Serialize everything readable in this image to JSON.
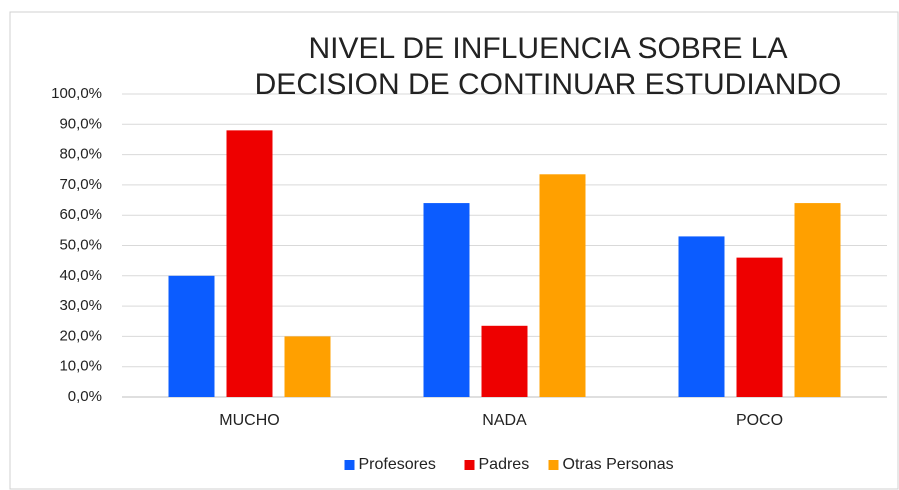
{
  "chart_data": {
    "type": "bar",
    "title": [
      "NIVEL DE INFLUENCIA SOBRE LA",
      "DECISION DE CONTINUAR ESTUDIANDO"
    ],
    "categories": [
      "MUCHO",
      "NADA",
      "POCO"
    ],
    "series": [
      {
        "name": "Profesores",
        "color": "#0b5cff",
        "values": [
          40,
          64,
          53
        ]
      },
      {
        "name": "Padres",
        "color": "#ee0000",
        "values": [
          88,
          23.5,
          46
        ]
      },
      {
        "name": "Otras Personas",
        "color": "#ffa000",
        "values": [
          20,
          73.5,
          64
        ]
      }
    ],
    "ylim": [
      0,
      100
    ],
    "yticks": [
      {
        "value": 0,
        "label": "0,0%"
      },
      {
        "value": 10,
        "label": "10,0%"
      },
      {
        "value": 20,
        "label": "20,0%"
      },
      {
        "value": 30,
        "label": "30,0%"
      },
      {
        "value": 40,
        "label": "40,0%"
      },
      {
        "value": 50,
        "label": "50,0%"
      },
      {
        "value": 60,
        "label": "60,0%"
      },
      {
        "value": 70,
        "label": "70,0%"
      },
      {
        "value": 80,
        "label": "80,0%"
      },
      {
        "value": 90,
        "label": "90,0%"
      },
      {
        "value": 100,
        "label": "100,0%"
      }
    ],
    "grid": true,
    "legend": "bottom"
  }
}
